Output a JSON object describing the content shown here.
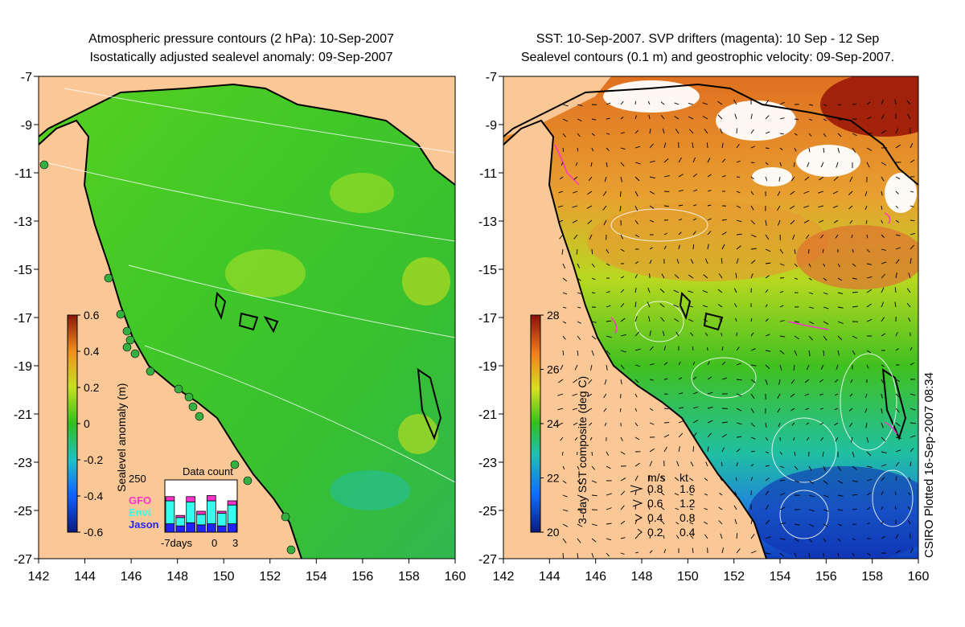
{
  "left_panel": {
    "title_line1": "Atmospheric pressure contours (2 hPa): 10-Sep-2007",
    "title_line2": "Isostatically adjusted sealevel anomaly: 09-Sep-2007",
    "colorbar": {
      "label": "Sealevel anomaly (m)",
      "ticks": [
        "0.6",
        "0.4",
        "0.2",
        "0",
        "-0.2",
        "-0.4",
        "-0.6"
      ]
    },
    "data_count": {
      "title": "Data count",
      "ymax_label": "250",
      "legend": [
        {
          "name": "GFO",
          "color": "#ff33cc"
        },
        {
          "name": "Envi",
          "color": "#33ffee"
        },
        {
          "name": "Jason",
          "color": "#2222ff"
        }
      ],
      "xlabels": [
        "-7days",
        "0",
        "3"
      ],
      "bars": [
        {
          "jason": 40,
          "envi": 110,
          "gfo": 20
        },
        {
          "jason": 30,
          "envi": 40,
          "gfo": 10
        },
        {
          "jason": 45,
          "envi": 100,
          "gfo": 25
        },
        {
          "jason": 35,
          "envi": 50,
          "gfo": 15
        },
        {
          "jason": 40,
          "envi": 110,
          "gfo": 25
        },
        {
          "jason": 30,
          "envi": 60,
          "gfo": 10
        },
        {
          "jason": 40,
          "envi": 90,
          "gfo": 20
        }
      ]
    }
  },
  "right_panel": {
    "title_line1": "SST: 10-Sep-2007. SVP drifters (magenta): 10 Sep - 12 Sep",
    "title_line2": "Sealevel contours (0.1 m) and geostrophic velocity: 09-Sep-2007.",
    "colorbar": {
      "label": "3-day SST composite (deg C)",
      "ticks": [
        "28",
        "26",
        "24",
        "22",
        "20"
      ]
    },
    "velocity_legend": {
      "header_ms": "m/s",
      "header_kt": "kt",
      "rows": [
        {
          "ms": "0.8",
          "kt": "1.6"
        },
        {
          "ms": "0.6",
          "kt": "1.2"
        },
        {
          "ms": "0.4",
          "kt": "0.8"
        },
        {
          "ms": "0.2",
          "kt": "0.4"
        }
      ]
    },
    "credit": "CSIRO Plotted 16-Sep-2007 08:34"
  },
  "axes": {
    "lon_ticks": [
      "142",
      "144",
      "146",
      "148",
      "150",
      "152",
      "154",
      "156",
      "158",
      "160"
    ],
    "lat_ticks": [
      "-7",
      "-9",
      "-11",
      "-13",
      "-15",
      "-17",
      "-19",
      "-21",
      "-23",
      "-25",
      "-27"
    ]
  },
  "colors": {
    "land": "#fac896",
    "sla_green": "#33cc22",
    "coast": "#000000"
  }
}
